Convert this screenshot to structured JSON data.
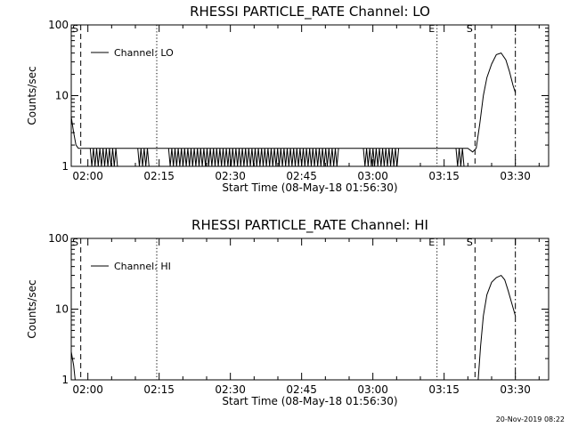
{
  "footer": "20-Nov-2019 08:22",
  "chart_data": [
    {
      "type": "line",
      "title": "RHESSI PARTICLE_RATE Channel: LO",
      "xlabel": "Start Time (08-May-18 01:56:30)",
      "ylabel": "Counts/sec",
      "y_scale": "log",
      "ylim": [
        1,
        100
      ],
      "xlim": [
        "01:56:30",
        "03:37:00"
      ],
      "x_ticks": [
        "02:00",
        "02:15",
        "02:30",
        "02:45",
        "03:00",
        "03:15",
        "03:30"
      ],
      "y_ticks": [
        "1",
        "10",
        "100"
      ],
      "grid": false,
      "legend": {
        "placement": "top-left",
        "entries": [
          "Channel: LO"
        ]
      },
      "series": [
        {
          "name": "Channel: LO",
          "x": [
            "01:56:30",
            "01:57:00",
            "01:57:30",
            "01:58:00",
            "01:58:30",
            "01:59:00",
            "02:00:00",
            "03:20:00",
            "03:21:00",
            "03:21:45",
            "03:22:30",
            "03:23:15",
            "03:24:00",
            "03:25:00",
            "03:26:00",
            "03:27:00",
            "03:28:00",
            "03:28:45",
            "03:29:30",
            "03:30:00"
          ],
          "y": [
            5,
            3,
            2,
            1.8,
            1.8,
            1.8,
            1.8,
            1.8,
            1.6,
            1.8,
            4,
            10,
            18,
            28,
            38,
            40,
            32,
            22,
            14,
            11
          ],
          "dropouts": [
            [
              "02:00:30",
              "02:06:30"
            ],
            [
              "02:10:30",
              "02:13:00"
            ],
            [
              "02:17:00",
              "02:53:00"
            ],
            [
              "02:58:00",
              "03:05:30"
            ],
            [
              "03:17:30",
              "03:19:30"
            ]
          ]
        }
      ],
      "annotations": [
        {
          "label": "S",
          "x": "01:58:30",
          "style": "dashed"
        },
        {
          "label": "",
          "x": "02:14:30",
          "style": "dotted"
        },
        {
          "label": "E",
          "x": "03:13:30",
          "style": "dotted"
        },
        {
          "label": "S",
          "x": "03:21:30",
          "style": "dashed"
        },
        {
          "label": "",
          "x": "03:30:00",
          "style": "dash-dot"
        }
      ]
    },
    {
      "type": "line",
      "title": "RHESSI PARTICLE_RATE Channel: HI",
      "xlabel": "Start Time (08-May-18 01:56:30)",
      "ylabel": "Counts/sec",
      "y_scale": "log",
      "ylim": [
        1,
        100
      ],
      "xlim": [
        "01:56:30",
        "03:37:00"
      ],
      "x_ticks": [
        "02:00",
        "02:15",
        "02:30",
        "02:45",
        "03:00",
        "03:15",
        "03:30"
      ],
      "y_ticks": [
        "1",
        "10",
        "100"
      ],
      "grid": false,
      "legend": {
        "placement": "top-left",
        "entries": [
          "Channel: HI"
        ]
      },
      "series": [
        {
          "name": "Channel: HI",
          "x": [
            "01:56:30",
            "01:57:00",
            "01:57:20",
            "03:22:10",
            "03:22:40",
            "03:23:15",
            "03:24:00",
            "03:25:00",
            "03:26:00",
            "03:27:00",
            "03:27:45",
            "03:28:30",
            "03:29:15",
            "03:30:00"
          ],
          "y": [
            2.5,
            1.6,
            1,
            1,
            3,
            8,
            16,
            24,
            28,
            30,
            26,
            18,
            12,
            8
          ]
        }
      ],
      "annotations": [
        {
          "label": "S",
          "x": "01:58:30",
          "style": "dashed"
        },
        {
          "label": "",
          "x": "02:14:30",
          "style": "dotted"
        },
        {
          "label": "E",
          "x": "03:13:30",
          "style": "dotted"
        },
        {
          "label": "S",
          "x": "03:21:30",
          "style": "dashed"
        },
        {
          "label": "",
          "x": "03:30:00",
          "style": "dash-dot"
        }
      ]
    }
  ]
}
